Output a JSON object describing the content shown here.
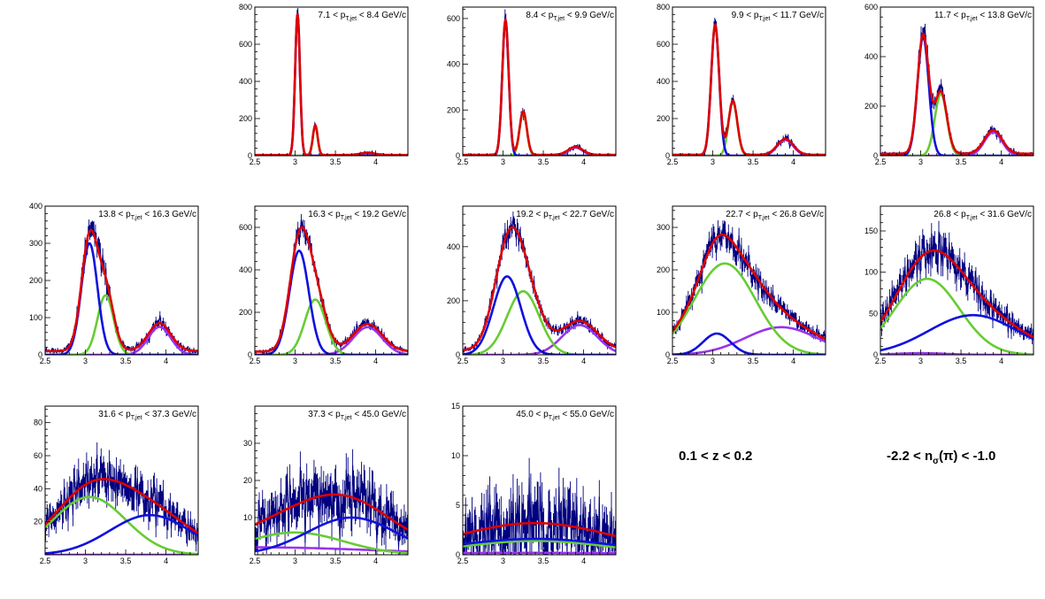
{
  "colors": {
    "data": "#000080",
    "total": "#dd0000",
    "pion": "#1010dd",
    "kaon": "#66cc33",
    "proton": "#9933ee"
  },
  "chart_data": [
    {
      "type": "line",
      "title": "7.1 < p_{T,jet} < 8.4 GeV/c",
      "title_parts": [
        "7.1 < p",
        "T,jet",
        "< 8.4 GeV/c"
      ],
      "xlim": [
        2.5,
        4.4
      ],
      "ylim": [
        0,
        800
      ],
      "xticks": [
        2.5,
        3,
        3.5,
        4
      ],
      "yticks": [
        0,
        200,
        400,
        600,
        800
      ],
      "peaks": [
        {
          "name": "pi",
          "mu": 3.03,
          "sigma": 0.03,
          "amp": 760
        },
        {
          "name": "K",
          "mu": 3.25,
          "sigma": 0.03,
          "amp": 160
        },
        {
          "name": "p",
          "mu": 3.9,
          "sigma": 0.09,
          "amp": 12
        }
      ],
      "baseline": 4
    },
    {
      "type": "line",
      "title": "8.4 < p_{T,jet} < 9.9 GeV/c",
      "title_parts": [
        "8.4 < p",
        "T,jet",
        "< 9.9 GeV/c"
      ],
      "xlim": [
        2.5,
        4.4
      ],
      "ylim": [
        0,
        650
      ],
      "xticks": [
        2.5,
        3,
        3.5,
        4
      ],
      "yticks": [
        0,
        200,
        400,
        600
      ],
      "peaks": [
        {
          "name": "pi",
          "mu": 3.03,
          "sigma": 0.04,
          "amp": 590
        },
        {
          "name": "K",
          "mu": 3.25,
          "sigma": 0.045,
          "amp": 190
        },
        {
          "name": "p",
          "mu": 3.9,
          "sigma": 0.09,
          "amp": 35
        }
      ],
      "baseline": 4
    },
    {
      "type": "line",
      "title": "9.9 < p_{T,jet} < 11.7 GeV/c",
      "title_parts": [
        "9.9 < p",
        "T,jet",
        "< 11.7 GeV/c"
      ],
      "xlim": [
        2.5,
        4.4
      ],
      "ylim": [
        0,
        800
      ],
      "xticks": [
        2.5,
        3,
        3.5,
        4
      ],
      "yticks": [
        0,
        200,
        400,
        600,
        800
      ],
      "peaks": [
        {
          "name": "pi",
          "mu": 3.03,
          "sigma": 0.05,
          "amp": 700
        },
        {
          "name": "K",
          "mu": 3.25,
          "sigma": 0.055,
          "amp": 290
        },
        {
          "name": "p",
          "mu": 3.9,
          "sigma": 0.1,
          "amp": 85
        }
      ],
      "baseline": 5
    },
    {
      "type": "line",
      "title": "11.7 < p_{T,jet} < 13.8 GeV/c",
      "title_parts": [
        "11.7 < p",
        "T,jet",
        "< 13.8 GeV/c"
      ],
      "xlim": [
        2.5,
        4.4
      ],
      "ylim": [
        0,
        600
      ],
      "xticks": [
        2.5,
        3,
        3.5,
        4
      ],
      "yticks": [
        0,
        200,
        400,
        600
      ],
      "peaks": [
        {
          "name": "pi",
          "mu": 3.03,
          "sigma": 0.07,
          "amp": 480
        },
        {
          "name": "K",
          "mu": 3.25,
          "sigma": 0.075,
          "amp": 250
        },
        {
          "name": "p",
          "mu": 3.9,
          "sigma": 0.11,
          "amp": 95
        }
      ],
      "baseline": 8
    },
    {
      "type": "line",
      "title": "13.8 < p_{T,jet} < 16.3 GeV/c",
      "title_parts": [
        "13.8 < p",
        "T,jet",
        "< 16.3 GeV/c"
      ],
      "xlim": [
        2.5,
        4.4
      ],
      "ylim": [
        0,
        400
      ],
      "xticks": [
        2.5,
        3,
        3.5,
        4
      ],
      "yticks": [
        0,
        100,
        200,
        300,
        400
      ],
      "peaks": [
        {
          "name": "pi",
          "mu": 3.05,
          "sigma": 0.1,
          "amp": 300
        },
        {
          "name": "K",
          "mu": 3.25,
          "sigma": 0.1,
          "amp": 160
        },
        {
          "name": "p",
          "mu": 3.92,
          "sigma": 0.14,
          "amp": 75
        }
      ],
      "baseline": 10
    },
    {
      "type": "line",
      "title": "16.3 < p_{T,jet} < 19.2 GeV/c",
      "title_parts": [
        "16.3 < p",
        "T,jet",
        "< 19.2 GeV/c"
      ],
      "xlim": [
        2.5,
        4.4
      ],
      "ylim": [
        0,
        700
      ],
      "xticks": [
        2.5,
        3,
        3.5,
        4
      ],
      "yticks": [
        0,
        200,
        400,
        600
      ],
      "peaks": [
        {
          "name": "pi",
          "mu": 3.05,
          "sigma": 0.12,
          "amp": 490
        },
        {
          "name": "K",
          "mu": 3.25,
          "sigma": 0.13,
          "amp": 260
        },
        {
          "name": "p",
          "mu": 3.9,
          "sigma": 0.18,
          "amp": 130
        }
      ],
      "baseline": 15
    },
    {
      "type": "line",
      "title": "19.2 < p_{T,jet} < 22.7 GeV/c",
      "title_parts": [
        "19.2 < p",
        "T,jet",
        "< 22.7 GeV/c"
      ],
      "xlim": [
        2.5,
        4.4
      ],
      "ylim": [
        0,
        550
      ],
      "xticks": [
        2.5,
        3,
        3.5,
        4
      ],
      "yticks": [
        0,
        200,
        400
      ],
      "peaks": [
        {
          "name": "pi",
          "mu": 3.05,
          "sigma": 0.17,
          "amp": 290
        },
        {
          "name": "K",
          "mu": 3.25,
          "sigma": 0.2,
          "amp": 235
        },
        {
          "name": "p",
          "mu": 3.95,
          "sigma": 0.22,
          "amp": 110
        }
      ],
      "baseline": 15
    },
    {
      "type": "line",
      "title": "22.7 < p_{T,jet} < 26.8 GeV/c",
      "title_parts": [
        "22.7 < p",
        "T,jet",
        "< 26.8 GeV/c"
      ],
      "xlim": [
        2.5,
        4.4
      ],
      "ylim": [
        0,
        350
      ],
      "xticks": [
        2.5,
        3,
        3.5,
        4
      ],
      "yticks": [
        0,
        100,
        200,
        300
      ],
      "peaks": [
        {
          "name": "pi",
          "mu": 3.05,
          "sigma": 0.17,
          "amp": 50
        },
        {
          "name": "K",
          "mu": 3.15,
          "sigma": 0.38,
          "amp": 215
        },
        {
          "name": "p",
          "mu": 3.85,
          "sigma": 0.45,
          "amp": 65
        }
      ],
      "baseline": 5
    },
    {
      "type": "line",
      "title": "26.8 < p_{T,jet} < 31.6 GeV/c",
      "title_parts": [
        "26.8 < p",
        "T,jet",
        "< 31.6 GeV/c"
      ],
      "xlim": [
        2.5,
        4.4
      ],
      "ylim": [
        0,
        180
      ],
      "xticks": [
        2.5,
        3,
        3.5,
        4
      ],
      "yticks": [
        0,
        50,
        100,
        150
      ],
      "peaks": [
        {
          "name": "pi",
          "mu": 3.65,
          "sigma": 0.55,
          "amp": 48
        },
        {
          "name": "K",
          "mu": 3.08,
          "sigma": 0.4,
          "amp": 92
        },
        {
          "name": "p",
          "mu": 3.0,
          "sigma": 0.3,
          "amp": 2
        }
      ],
      "baseline": 2
    },
    {
      "type": "line",
      "title": "31.6 < p_{T,jet} < 37.3 GeV/c",
      "title_parts": [
        "31.6 < p",
        "T,jet",
        "< 37.3 GeV/c"
      ],
      "xlim": [
        2.5,
        4.4
      ],
      "ylim": [
        0,
        90
      ],
      "xticks": [
        2.5,
        3,
        3.5,
        4
      ],
      "yticks": [
        20,
        40,
        60,
        80
      ],
      "peaks": [
        {
          "name": "pi",
          "mu": 3.8,
          "sigma": 0.5,
          "amp": 24
        },
        {
          "name": "K",
          "mu": 3.05,
          "sigma": 0.45,
          "amp": 35
        },
        {
          "name": "p",
          "mu": 3.0,
          "sigma": 0.3,
          "amp": 0
        }
      ],
      "baseline": 1
    },
    {
      "type": "line",
      "title": "37.3 < p_{T,jet} < 45.0 GeV/c",
      "title_parts": [
        "37.3 < p",
        "T,jet",
        "< 45.0 GeV/c"
      ],
      "xlim": [
        2.5,
        4.4
      ],
      "ylim": [
        0,
        40
      ],
      "xticks": [
        2.5,
        3,
        3.5,
        4
      ],
      "yticks": [
        10,
        20,
        30
      ],
      "peaks": [
        {
          "name": "pi",
          "mu": 3.7,
          "sigma": 0.55,
          "amp": 10
        },
        {
          "name": "K",
          "mu": 3.0,
          "sigma": 0.6,
          "amp": 6
        },
        {
          "name": "p",
          "mu": 2.5,
          "sigma": 1.5,
          "amp": 2
        }
      ],
      "baseline": 1
    },
    {
      "type": "line",
      "title": "45.0 < p_{T,jet} < 55.0 GeV/c",
      "title_parts": [
        "45.0 < p",
        "T,jet",
        "< 55.0 GeV/c"
      ],
      "xlim": [
        2.5,
        4.4
      ],
      "ylim": [
        0,
        15
      ],
      "xticks": [
        2.5,
        3,
        3.5,
        4
      ],
      "yticks": [
        0,
        5,
        10,
        15
      ],
      "peaks": [
        {
          "name": "pi",
          "mu": 3.4,
          "sigma": 1.0,
          "amp": 1.6
        },
        {
          "name": "K",
          "mu": 3.4,
          "sigma": 0.9,
          "amp": 1.4
        },
        {
          "name": "p",
          "mu": 3.3,
          "sigma": 1.5,
          "amp": 0.2
        }
      ],
      "baseline": 0
    }
  ],
  "annotations": {
    "z_range": "0.1 < z < 0.2",
    "nsigma_pre": "-2.2 < n",
    "nsigma_sub": "σ",
    "nsigma_post": "(π) < -1.0"
  }
}
